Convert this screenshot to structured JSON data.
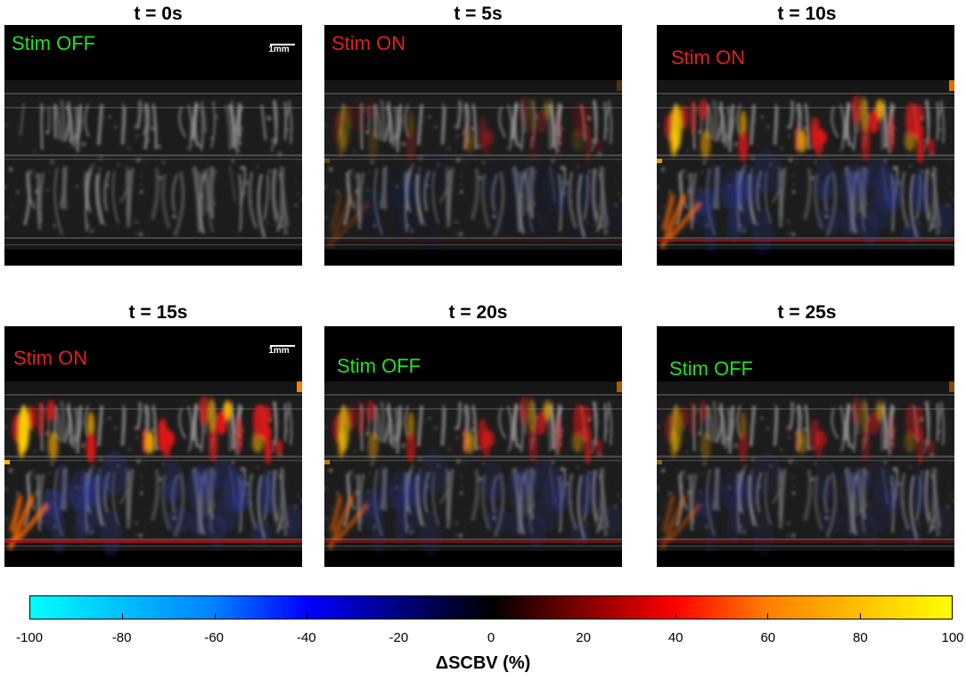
{
  "panels": [
    {
      "title": "t = 0s",
      "stim": "Stim OFF",
      "stim_color": "#22e022",
      "scale_label": "1mm",
      "activation": 0.0
    },
    {
      "title": "t = 5s",
      "stim": "Stim ON",
      "stim_color": "#e02020",
      "scale_label": "",
      "activation": 0.25
    },
    {
      "title": "t = 10s",
      "stim": "Stim ON",
      "stim_color": "#e02020",
      "scale_label": "",
      "activation": 0.85
    },
    {
      "title": "t = 15s",
      "stim": "Stim ON",
      "stim_color": "#e02020",
      "scale_label": "1mm",
      "activation": 1.0
    },
    {
      "title": "t = 20s",
      "stim": "Stim OFF",
      "stim_color": "#22e022",
      "scale_label": "",
      "activation": 0.65
    },
    {
      "title": "t = 25s",
      "stim": "Stim OFF",
      "stim_color": "#22e022",
      "scale_label": "",
      "activation": 0.45
    }
  ],
  "colorbar": {
    "ticks": [
      "-100",
      "-80",
      "-60",
      "-40",
      "-20",
      "0",
      "20",
      "40",
      "60",
      "80",
      "100"
    ],
    "min": -100,
    "max": 100,
    "label": "ΔSCBV (%)",
    "colors": [
      "#00ffff",
      "#0080ff",
      "#0000ff",
      "#000080",
      "#000000",
      "#800000",
      "#ff0000",
      "#ff8000",
      "#ffff00"
    ]
  }
}
